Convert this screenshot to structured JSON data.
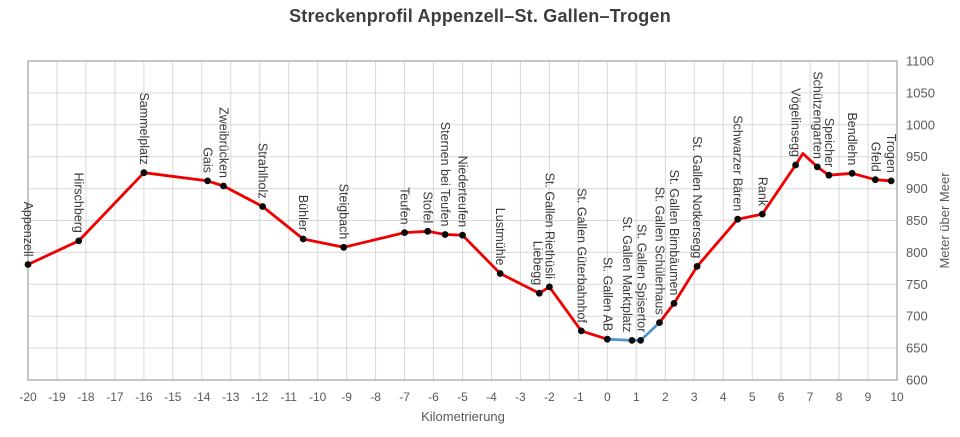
{
  "chart_data": {
    "type": "line",
    "title": "Streckenprofil Appenzell–St. Gallen–Trogen",
    "xlabel": "Kilometrierung",
    "ylabel": "Meter über Meer",
    "xlim": [
      -20,
      10
    ],
    "ylim": [
      600,
      1100
    ],
    "x_ticks": [
      -20,
      -19,
      -18,
      -17,
      -16,
      -15,
      -14,
      -13,
      -12,
      -11,
      -10,
      -9,
      -8,
      -7,
      -6,
      -5,
      -4,
      -3,
      -2,
      -1,
      0,
      1,
      2,
      3,
      4,
      5,
      6,
      7,
      8,
      9,
      10
    ],
    "y_ticks": [
      600,
      650,
      700,
      750,
      800,
      850,
      900,
      950,
      1000,
      1050,
      1100
    ],
    "y_axis_side": "right",
    "grid": true,
    "legend": false,
    "colors": {
      "red_segment": "#ef0000",
      "blue_segment": "#4e96cf",
      "marker": "#0a0a0a",
      "grid": "#d9d9d9",
      "frame": "#a0a0a0",
      "title": "#3d3d3d",
      "ticks": "#595959",
      "station_label": "#3a3a3a"
    },
    "stations": [
      {
        "label": "Appenzell",
        "km": -20,
        "m": 781
      },
      {
        "label": "Hirschberg",
        "km": -18.25,
        "m": 818
      },
      {
        "label": "Sammelplatz",
        "km": -16,
        "m": 925
      },
      {
        "label": "Gais",
        "km": -13.8,
        "m": 912
      },
      {
        "label": "Zweibrücken",
        "km": -13.25,
        "m": 904
      },
      {
        "label": "Strahlholz",
        "km": -11.9,
        "m": 872
      },
      {
        "label": "Bühler",
        "km": -10.5,
        "m": 821
      },
      {
        "label": "Steigbach",
        "km": -9.1,
        "m": 808
      },
      {
        "label": "Teufen",
        "km": -7,
        "m": 831
      },
      {
        "label": "Stofel",
        "km": -6.2,
        "m": 833
      },
      {
        "label": "Sternen bei Teufen",
        "km": -5.6,
        "m": 828
      },
      {
        "label": "Niederteufen",
        "km": -5,
        "m": 827
      },
      {
        "label": "Lustmühle",
        "km": -3.7,
        "m": 767
      },
      {
        "label": "Liebegg",
        "km": -2.35,
        "m": 736,
        "ldx": -2
      },
      {
        "label": "St. Gallen Riethüsli",
        "km": -2,
        "m": 746
      },
      {
        "label": "St. Gallen Güterbahnhof",
        "km": -0.9,
        "m": 677
      },
      {
        "label": "St. Gallen AB",
        "km": 0,
        "m": 664
      },
      {
        "label": "St. Gallen Marktplatz",
        "km": 0.85,
        "m": 662,
        "ldx": -5
      },
      {
        "label": "St. Gallen Spisertor",
        "km": 1.15,
        "m": 662,
        "ldx": 1
      },
      {
        "label": "St. Gallen Schülerhaus",
        "km": 1.8,
        "m": 690
      },
      {
        "label": "St. Gallen Birnbäumen",
        "km": 2.3,
        "m": 720
      },
      {
        "label": "St. Gallen Notkersegg",
        "km": 3.1,
        "m": 778
      },
      {
        "label": "Schwarzer Bären",
        "km": 4.5,
        "m": 852
      },
      {
        "label": "Rank",
        "km": 5.35,
        "m": 860
      },
      {
        "label": "Vögelinsegg",
        "km": 6.5,
        "m": 937
      },
      {
        "label": "",
        "km": 6.75,
        "m": 955,
        "marker": false
      },
      {
        "label": "Schützengarten",
        "km": 7.25,
        "m": 934
      },
      {
        "label": "Speicher",
        "km": 7.65,
        "m": 921
      },
      {
        "label": "Bendlehn",
        "km": 8.45,
        "m": 924
      },
      {
        "label": "Gfeld",
        "km": 9.25,
        "m": 914
      },
      {
        "label": "Trogen",
        "km": 9.8,
        "m": 912
      }
    ],
    "segments": [
      {
        "color": "red_segment",
        "from": 0,
        "to": 16
      },
      {
        "color": "blue_segment",
        "from": 16,
        "to": 19
      },
      {
        "color": "red_segment",
        "from": 19,
        "to": 30
      }
    ]
  }
}
